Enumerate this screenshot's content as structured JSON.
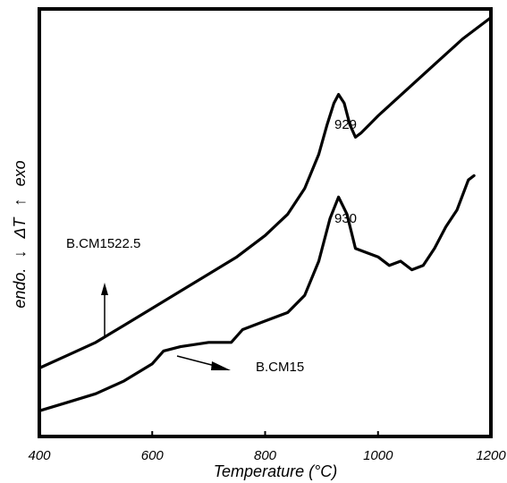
{
  "chart_data": {
    "type": "line",
    "xlabel": "Temperature (°C)",
    "ylabel": {
      "left": "endo.",
      "arrow_down": "↓",
      "delta": "ΔT",
      "arrow_up": "↑",
      "right": "exo"
    },
    "xlim": [
      400,
      1200
    ],
    "ylim": [
      0,
      100
    ],
    "xticks": [
      400,
      600,
      800,
      1000,
      1200
    ],
    "grid": false,
    "legend": "none",
    "series": [
      {
        "name": "B.CM1522.5",
        "x": [
          400,
          450,
          500,
          550,
          600,
          650,
          700,
          750,
          800,
          840,
          870,
          895,
          910,
          922,
          930,
          940,
          950,
          960,
          970,
          985,
          1000,
          1050,
          1100,
          1150,
          1200
        ],
        "y": [
          16,
          19,
          22,
          26,
          30,
          34,
          38,
          42,
          47,
          52,
          58,
          66,
          73,
          78,
          80,
          78,
          73,
          70,
          71,
          73,
          75,
          81,
          87,
          93,
          98
        ]
      },
      {
        "name": "B.CM15",
        "x": [
          400,
          450,
          500,
          550,
          600,
          620,
          650,
          700,
          740,
          760,
          800,
          840,
          870,
          895,
          915,
          930,
          945,
          960,
          980,
          1000,
          1020,
          1040,
          1060,
          1080,
          1100,
          1120,
          1140,
          1160,
          1170
        ],
        "y": [
          6,
          8,
          10,
          13,
          17,
          20,
          21,
          22,
          22,
          25,
          27,
          29,
          33,
          41,
          51,
          56,
          52,
          44,
          43,
          42,
          40,
          41,
          39,
          40,
          44,
          49,
          53,
          60,
          61
        ]
      }
    ]
  },
  "annotations": {
    "peak_top": "929",
    "peak_bottom": "930",
    "label_top_series": "B.CM1522.5",
    "label_bottom_series": "B.CM15"
  }
}
